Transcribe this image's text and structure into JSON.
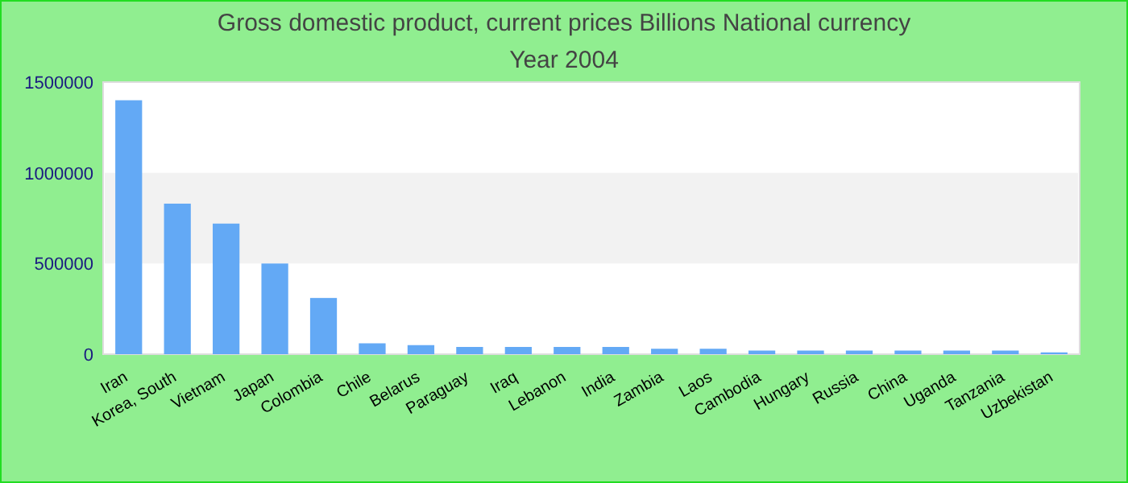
{
  "chart_data": {
    "type": "bar",
    "title": "Gross domestic product, current prices Billions National currency",
    "subtitle": "Year 2004",
    "categories": [
      "Iran",
      "Korea, South",
      "Vietnam",
      "Japan",
      "Colombia",
      "Chile",
      "Belarus",
      "Paraguay",
      "Iraq",
      "Lebanon",
      "India",
      "Zambia",
      "Laos",
      "Cambodia",
      "Hungary",
      "Russia",
      "China",
      "Uganda",
      "Tanzania",
      "Uzbekistan"
    ],
    "values": [
      1400000,
      830000,
      720000,
      500000,
      310000,
      60000,
      50000,
      40000,
      40000,
      40000,
      40000,
      30000,
      30000,
      20000,
      20000,
      20000,
      20000,
      20000,
      20000,
      10000
    ],
    "color": "#63a9f5",
    "ylim": [
      0,
      1500000
    ],
    "yticks": [
      0,
      500000,
      1000000,
      1500000
    ],
    "bands": [
      {
        "axis": "y",
        "from": 500000,
        "to": 1000000,
        "color": "#f2f2f2"
      }
    ]
  }
}
